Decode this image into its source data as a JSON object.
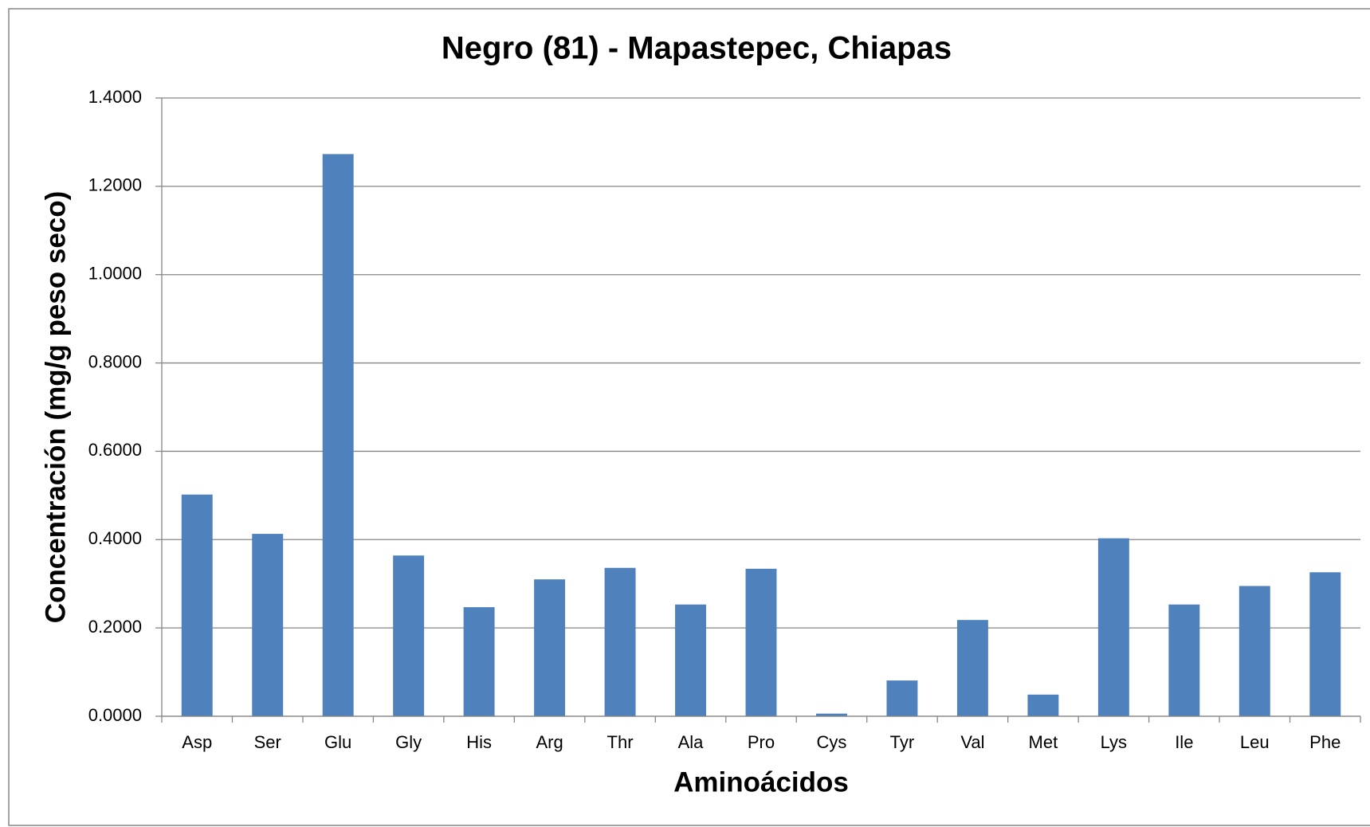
{
  "chart_data": {
    "type": "bar",
    "title": "Negro (81) - Mapastepec, Chiapas",
    "x_label": "Aminoácidos",
    "y_label": "Concentración (mg/g peso seco)",
    "categories": [
      "Asp",
      "Ser",
      "Glu",
      "Gly",
      "His",
      "Arg",
      "Thr",
      "Ala",
      "Pro",
      "Cys",
      "Tyr",
      "Val",
      "Met",
      "Lys",
      "Ile",
      "Leu",
      "Phe"
    ],
    "values": [
      0.502,
      0.413,
      1.273,
      0.364,
      0.247,
      0.31,
      0.336,
      0.253,
      0.334,
      0.006,
      0.081,
      0.218,
      0.049,
      0.403,
      0.253,
      0.295,
      0.326
    ],
    "color": "#4f81bd",
    "ylim": [
      0,
      1.4
    ],
    "yticks": [
      {
        "value": 0,
        "label": "0.0000"
      },
      {
        "value": 0.2,
        "label": "0.2000"
      },
      {
        "value": 0.4,
        "label": "0.4000"
      },
      {
        "value": 0.6,
        "label": "0.6000"
      },
      {
        "value": 0.8,
        "label": "0.8000"
      },
      {
        "value": 1.0,
        "label": "1.0000"
      },
      {
        "value": 1.2,
        "label": "1.2000"
      },
      {
        "value": 1.4,
        "label": "1.4000"
      }
    ],
    "grid": true
  }
}
